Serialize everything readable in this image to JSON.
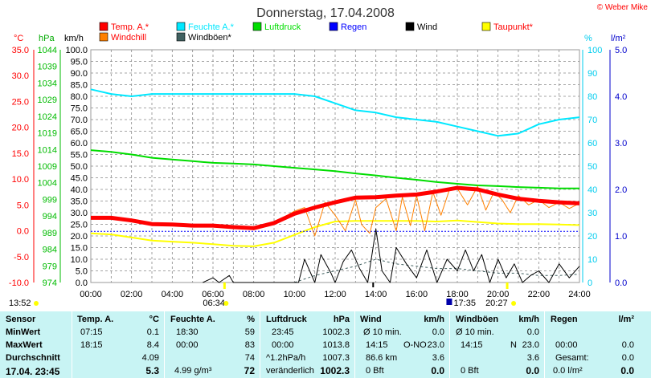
{
  "title": "Donnerstag, 17.04.2008",
  "brand": "© Weber Mike",
  "colors": {
    "temp": "#ff0000",
    "feuchte": "#00e8ff",
    "luftdruck": "#00dd00",
    "regen": "#0000ff",
    "wind": "#000000",
    "taupunkt": "#ffff00",
    "windchill": "#ff8000",
    "windboeen": "#406060",
    "panel": "#c8f4f4",
    "sun": "#ffff00"
  },
  "units": {
    "temp": "°C",
    "hpa": "hPa",
    "kmh": "km/h",
    "pct": "%",
    "lm2": "l/m²"
  },
  "legend": [
    {
      "label": "Temp. A.*",
      "color": "#ff0000",
      "labelColor": "#ff0000"
    },
    {
      "label": "Feuchte A.*",
      "color": "#00e8ff",
      "labelColor": "#00e8ff"
    },
    {
      "label": "Luftdruck",
      "color": "#00dd00",
      "labelColor": "#00dd00"
    },
    {
      "label": "Regen",
      "color": "#0000ff",
      "labelColor": "#0000ff"
    },
    {
      "label": "Wind",
      "color": "#000000",
      "labelColor": "#000000"
    },
    {
      "label": "Taupunkt*",
      "color": "#ffff00",
      "labelColor": "#ff0000"
    },
    {
      "label": "Windchill",
      "color": "#ff8000",
      "labelColor": "#ff0000"
    },
    {
      "label": "Windböen*",
      "color": "#406060",
      "labelColor": "#000000"
    }
  ],
  "events": {
    "sunrise_time": "06:34",
    "sunset_time": "20:27",
    "other_time": "17:35",
    "now_time": "13:52"
  },
  "chart_data": {
    "type": "line",
    "x_unit": "hours",
    "xlim": [
      0,
      24
    ],
    "xticks": [
      "00:00",
      "02:00",
      "04:00",
      "06:00",
      "08:00",
      "10:00",
      "12:00",
      "14:00",
      "16:00",
      "18:00",
      "20:00",
      "22:00",
      "24:00"
    ],
    "axes": {
      "temp": {
        "ylim": [
          -10,
          35
        ],
        "ticks": [
          "35.0",
          "30.0",
          "25.0",
          "20.0",
          "15.0",
          "10.0",
          "5.0",
          "0.0",
          "-5.0",
          "-10.0"
        ]
      },
      "hpa": {
        "ylim": [
          974,
          1044
        ],
        "ticks": [
          "1044",
          "1039",
          "1034",
          "1029",
          "1024",
          "1019",
          "1014",
          "1009",
          "1004",
          "999",
          "994",
          "989",
          "984",
          "979",
          "974"
        ]
      },
      "kmh": {
        "ylim": [
          0,
          100
        ],
        "ticks": [
          "100.0",
          "95.0",
          "90.0",
          "85.0",
          "80.0",
          "75.0",
          "70.0",
          "65.0",
          "60.0",
          "55.0",
          "50.0",
          "45.0",
          "40.0",
          "35.0",
          "30.0",
          "25.0",
          "20.0",
          "15.0",
          "10.0",
          "5.0",
          "0.0"
        ]
      },
      "pct": {
        "ylim": [
          0,
          100
        ],
        "ticks": [
          "100",
          "90",
          "80",
          "70",
          "60",
          "50",
          "40",
          "30",
          "20",
          "10",
          "0"
        ]
      },
      "lm2": {
        "ylim": [
          0,
          5
        ],
        "ticks": [
          "5.0",
          "4.0",
          "3.0",
          "2.0",
          "1.0",
          "0.0"
        ]
      }
    },
    "series": [
      {
        "name": "Temp. A.*",
        "axis": "temp",
        "x": [
          0,
          1,
          2,
          3,
          4,
          5,
          6,
          7,
          8,
          9,
          10,
          11,
          12,
          13,
          14,
          15,
          16,
          17,
          18,
          19,
          20,
          21,
          22,
          23,
          24
        ],
        "y": [
          2.5,
          2.5,
          2.0,
          1.3,
          1.2,
          1.0,
          1.0,
          0.7,
          0.5,
          1.5,
          3.3,
          4.5,
          5.5,
          6.4,
          6.5,
          6.8,
          7.0,
          7.6,
          8.3,
          8.0,
          7.0,
          6.2,
          5.8,
          5.5,
          5.3
        ]
      },
      {
        "name": "Feuchte A.*",
        "axis": "pct",
        "x": [
          0,
          1,
          2,
          3,
          4,
          5,
          6,
          7,
          8,
          9,
          10,
          11,
          12,
          13,
          14,
          15,
          16,
          17,
          18,
          19,
          20,
          21,
          22,
          23,
          24
        ],
        "y": [
          83,
          81,
          80,
          81,
          81,
          81,
          81,
          81,
          81,
          81,
          81,
          80,
          77,
          74,
          73,
          71,
          70,
          69,
          67,
          65,
          63,
          64,
          68,
          70,
          71
        ]
      },
      {
        "name": "Luftdruck",
        "axis": "hpa",
        "x": [
          0,
          1,
          2,
          3,
          4,
          5,
          6,
          7,
          8,
          9,
          10,
          11,
          12,
          13,
          14,
          15,
          16,
          17,
          18,
          19,
          20,
          21,
          22,
          23,
          24
        ],
        "y": [
          1013.8,
          1013.3,
          1012.5,
          1011.5,
          1011.0,
          1010.5,
          1010.0,
          1009.8,
          1009.5,
          1009.0,
          1008.5,
          1008.0,
          1007.5,
          1006.8,
          1006.2,
          1005.5,
          1004.9,
          1004.2,
          1003.7,
          1003.2,
          1003.0,
          1002.7,
          1002.5,
          1002.3,
          1002.3
        ]
      },
      {
        "name": "Regen",
        "axis": "lm2",
        "x": [
          0,
          24
        ],
        "y": [
          1.1,
          1.1
        ]
      },
      {
        "name": "Taupunkt*",
        "axis": "temp",
        "x": [
          0,
          1,
          2,
          3,
          4,
          5,
          6,
          7,
          8,
          9,
          10,
          11,
          12,
          13,
          14,
          15,
          16,
          17,
          18,
          19,
          20,
          21,
          22,
          23,
          24
        ],
        "y": [
          -0.5,
          -0.7,
          -1.3,
          -1.9,
          -2.1,
          -2.3,
          -2.6,
          -2.9,
          -3.0,
          -2.3,
          -0.8,
          0.7,
          1.8,
          1.9,
          1.9,
          1.9,
          1.9,
          1.8,
          2.0,
          1.7,
          1.4,
          1.3,
          1.3,
          1.2,
          1.1
        ]
      },
      {
        "name": "Windchill",
        "axis": "temp",
        "x": [
          9,
          10,
          10.5,
          11,
          11.5,
          12,
          12.5,
          13,
          13.3,
          13.7,
          14,
          14.5,
          15,
          15.3,
          15.7,
          16,
          16.4,
          16.8,
          17.2,
          17.6,
          18,
          18.5,
          19,
          19.4,
          19.8,
          20.2,
          20.6,
          21,
          21.5,
          22,
          22.5,
          23,
          23.5,
          24
        ],
        "y": [
          1.5,
          3.8,
          4.5,
          -1.0,
          5.5,
          3.0,
          0.0,
          6.0,
          1.2,
          -0.5,
          4.5,
          6.2,
          0.0,
          6.5,
          1.0,
          6.8,
          0.0,
          7.5,
          3.0,
          7.8,
          8.2,
          5.0,
          8.6,
          4.0,
          7.5,
          6.0,
          3.5,
          6.8,
          5.0,
          6.0,
          4.5,
          5.5,
          4.3,
          5.3
        ]
      },
      {
        "name": "Wind",
        "axis": "kmh",
        "x": [
          5.5,
          6.0,
          6.3,
          6.8,
          7.0,
          10.2,
          10.5,
          11.0,
          11.3,
          11.8,
          12.0,
          12.4,
          12.8,
          13.2,
          13.6,
          14.0,
          14.3,
          14.7,
          15.0,
          15.5,
          16.0,
          16.5,
          17.0,
          17.5,
          18.0,
          18.4,
          18.8,
          19.2,
          19.6,
          20.0,
          20.4,
          20.8,
          21.2,
          21.6,
          22.0,
          22.5,
          23.0,
          23.5,
          24.0
        ],
        "y": [
          0,
          2,
          0,
          3,
          0,
          0,
          10,
          0,
          12,
          4,
          0,
          9,
          14,
          6,
          0,
          23,
          5,
          0,
          15,
          8,
          2,
          14,
          0,
          10,
          5,
          14,
          5,
          12,
          0,
          10,
          2,
          8,
          0,
          3,
          5,
          0,
          8,
          2,
          7
        ]
      },
      {
        "name": "Windböen*",
        "axis": "kmh",
        "x": [
          10,
          11,
          12,
          13,
          14,
          15,
          16,
          17,
          18,
          19,
          20,
          21,
          22,
          23,
          24
        ],
        "y": [
          0,
          3,
          5,
          7,
          10,
          8,
          7,
          6,
          6,
          5,
          4,
          4,
          3,
          3,
          3.6
        ]
      }
    ]
  },
  "table": {
    "sensor": {
      "header": "Sensor",
      "rows": [
        "MinWert",
        "MaxWert",
        "Durchschnitt"
      ],
      "current": "17.04. 23:45"
    },
    "temp": {
      "header": "Temp. A.",
      "unit": "°C",
      "min_time": "07:15",
      "min": "0.1",
      "max_time": "18:15",
      "max": "8.4",
      "avg": "4.09",
      "current": "5.3"
    },
    "feuchte": {
      "header": "Feuchte A.",
      "unit": "%",
      "min_time": "18:30",
      "min": "59",
      "max_time": "00:00",
      "max": "83",
      "avg": "74",
      "extra": "4.99 g/m³",
      "current": "72"
    },
    "luftdruck": {
      "header": "Luftdruck",
      "unit": "hPa",
      "min_time": "23:45",
      "min": "1002.3",
      "max_time": "00:00",
      "max": "1013.8",
      "avg_label": "^1.2hPa/h",
      "avg": "1007.3",
      "trend": "veränderlich",
      "current": "1002.3"
    },
    "wind": {
      "header": "Wind",
      "unit": "km/h",
      "min_label": "Ø 10 min.",
      "min": "0.0",
      "max_time": "14:15",
      "max_dir": "O-NO",
      "max": "23.0",
      "avg_label": "86.6 km",
      "avg": "3.6",
      "bft": "0 Bft",
      "current": "0.0"
    },
    "windboeen": {
      "header": "Windböen",
      "unit": "km/h",
      "min_label": "Ø 10 min.",
      "min": "0.0",
      "max_time": "14:15",
      "max_dir": "N",
      "max": "23.0",
      "avg": "3.6",
      "bft": "0 Bft",
      "current": "0.0"
    },
    "regen": {
      "header": "Regen",
      "unit": "l/m²",
      "max_time": "00:00",
      "max": "0.0",
      "total_label": "Gesamt:",
      "total": "0.0",
      "current_label": "0.0 l/m²",
      "current": "0.0"
    }
  }
}
